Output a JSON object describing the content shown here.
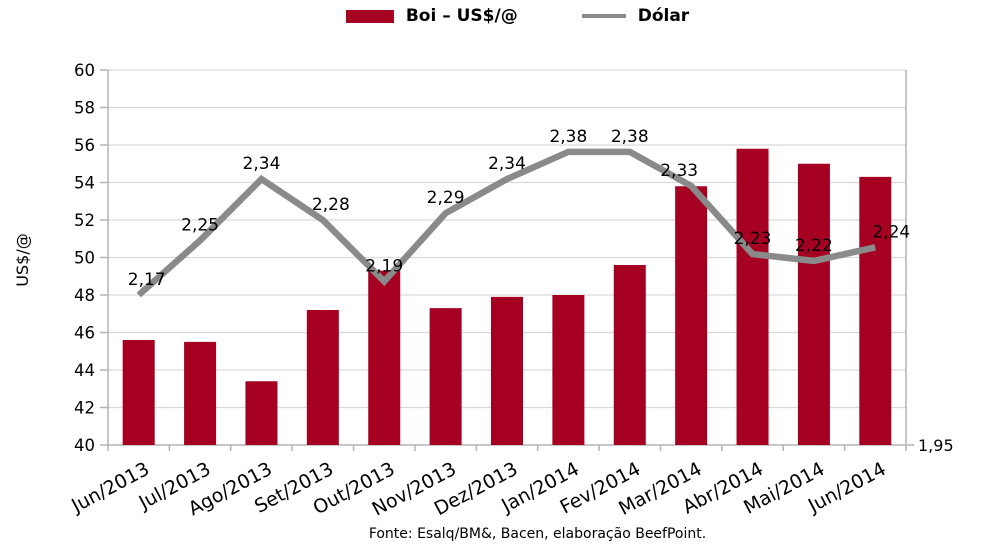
{
  "legend": {
    "series1_label": "Boi – US$/@",
    "series2_label": "Dólar"
  },
  "footer": {
    "source_text": "Fonte: Esalq/BM&, Bacen, elaboração BeefPoint."
  },
  "chart_data": {
    "type": "bar",
    "subtype": "bar+line combo, line on secondary right axis",
    "categories": [
      "Jun/2013",
      "Jul/2013",
      "Ago/2013",
      "Set/2013",
      "Out/2013",
      "Nov/2013",
      "Dez/2013",
      "Jan/2014",
      "Fev/2014",
      "Mar/2014",
      "Abr/2014",
      "Mai/2014",
      "Jun/2014"
    ],
    "series": [
      {
        "name": "Boi – US$/@",
        "type": "bar",
        "axis": "left",
        "color": "#A50022",
        "values": [
          45.6,
          45.5,
          43.4,
          47.2,
          49.3,
          47.3,
          47.9,
          48.0,
          49.6,
          53.8,
          55.8,
          55.0,
          54.3
        ]
      },
      {
        "name": "Dólar",
        "type": "line",
        "axis": "right",
        "color": "#8A8A8A",
        "values": [
          2.17,
          2.25,
          2.34,
          2.28,
          2.19,
          2.29,
          2.34,
          2.38,
          2.38,
          2.33,
          2.23,
          2.22,
          2.24
        ],
        "labels": [
          "2,17",
          "2,25",
          "2,34",
          "2,28",
          "2,19",
          "2,29",
          "2,34",
          "2,38",
          "2,38",
          "2,33",
          "2,23",
          "2,22",
          "2,24"
        ]
      }
    ],
    "left_axis": {
      "title": "US$/@",
      "min": 40,
      "max": 60,
      "step": 2,
      "tick_labels": [
        "40",
        "42",
        "44",
        "46",
        "48",
        "50",
        "52",
        "54",
        "56",
        "58",
        "60"
      ]
    },
    "right_axis": {
      "min": 1.95,
      "max": 2.5,
      "visible_label": "1,95"
    },
    "grid": true,
    "grid_color": "#D9D9D9",
    "axis_color": "#B3B3B3",
    "legend_position": "top"
  }
}
